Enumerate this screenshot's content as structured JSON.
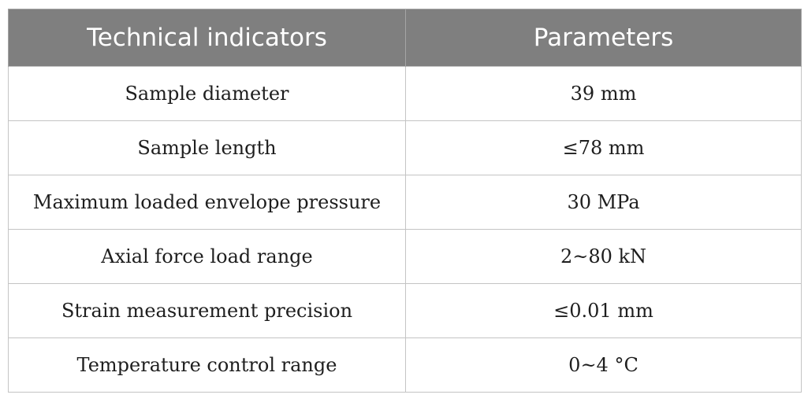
{
  "table": {
    "headers": [
      "Technical indicators",
      "Parameters"
    ],
    "rows": [
      [
        "Sample diameter",
        "39 mm"
      ],
      [
        "Sample length",
        "≤78 mm"
      ],
      [
        "Maximum loaded envelope pressure",
        "30 MPa"
      ],
      [
        "Axial force load range",
        "2~80 kN"
      ],
      [
        "Strain measurement precision",
        "≤0.01 mm"
      ],
      [
        "Temperature control range",
        "0~4 °C"
      ]
    ]
  },
  "colors": {
    "header_bg": "#7f7f7f",
    "header_text": "#ffffff",
    "border": "#c4c4c4"
  }
}
